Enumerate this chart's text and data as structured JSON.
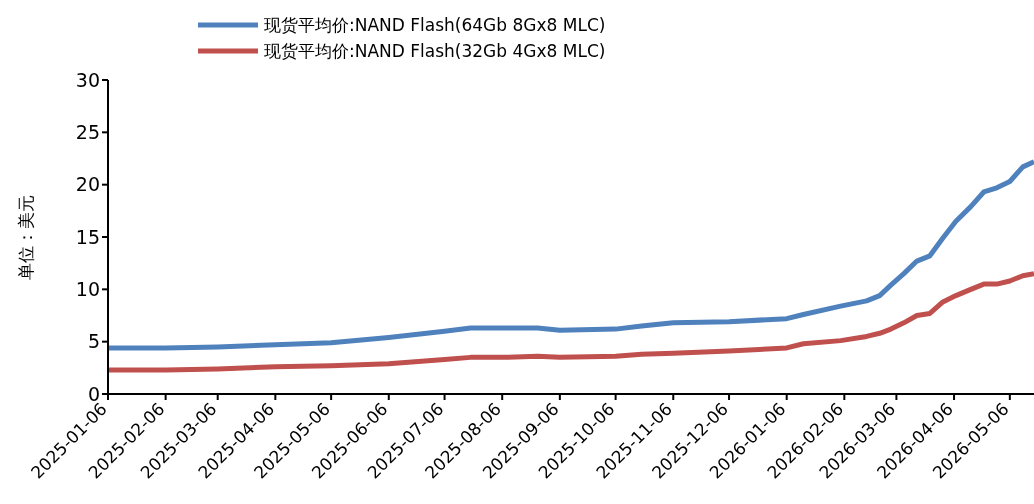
{
  "chart_data": {
    "type": "line",
    "ylabel": "单位：美元",
    "x": [
      "2025-01-06",
      "2025-02-06",
      "2025-03-06",
      "2025-04-06",
      "2025-05-06",
      "2025-06-06",
      "2025-07-06",
      "2025-07-20",
      "2025-08-06",
      "2025-08-25",
      "2025-09-06",
      "2025-10-06",
      "2025-10-20",
      "2025-11-06",
      "2025-12-06",
      "2026-01-06",
      "2026-01-15",
      "2026-02-04",
      "2026-02-18",
      "2026-02-25",
      "2026-03-03",
      "2026-03-10",
      "2026-03-17",
      "2026-03-24",
      "2026-03-31",
      "2026-04-07",
      "2026-04-15",
      "2026-04-22",
      "2026-04-29",
      "2026-05-06",
      "2026-05-13",
      "2026-05-19"
    ],
    "series": [
      {
        "name": "现货平均价:NAND Flash(64Gb 8Gx8 MLC)",
        "color": "#4f81bd",
        "values": [
          4.4,
          4.4,
          4.5,
          4.7,
          4.9,
          5.4,
          6.0,
          6.3,
          6.3,
          6.3,
          6.1,
          6.2,
          6.5,
          6.8,
          6.9,
          7.2,
          7.6,
          8.4,
          8.9,
          9.4,
          10.4,
          11.5,
          12.7,
          13.2,
          14.9,
          16.5,
          17.9,
          19.3,
          19.7,
          20.3,
          21.7,
          22.2
        ]
      },
      {
        "name": "现货平均价:NAND Flash(32Gb 4Gx8 MLC)",
        "color": "#c0504d",
        "values": [
          2.3,
          2.3,
          2.4,
          2.6,
          2.7,
          2.9,
          3.3,
          3.5,
          3.5,
          3.6,
          3.5,
          3.6,
          3.8,
          3.9,
          4.1,
          4.4,
          4.8,
          5.1,
          5.5,
          5.8,
          6.2,
          6.8,
          7.5,
          7.7,
          8.8,
          9.4,
          10.0,
          10.5,
          10.5,
          10.8,
          11.3,
          11.5
        ]
      }
    ],
    "xlim": [
      "2025-01-06",
      "2026-05-19"
    ],
    "xticks": [
      "2025-01-06",
      "2025-02-06",
      "2025-03-06",
      "2025-04-06",
      "2025-05-06",
      "2025-06-06",
      "2025-07-06",
      "2025-08-06",
      "2025-09-06",
      "2025-10-06",
      "2025-11-06",
      "2025-12-06",
      "2026-01-06",
      "2026-02-06",
      "2026-03-06",
      "2026-04-06",
      "2026-05-06"
    ],
    "ylim": [
      0,
      30
    ],
    "yticks": [
      0,
      5,
      10,
      15,
      20,
      25,
      30
    ],
    "grid": false,
    "legend": "top",
    "marker": "none",
    "line_style": "solid"
  }
}
